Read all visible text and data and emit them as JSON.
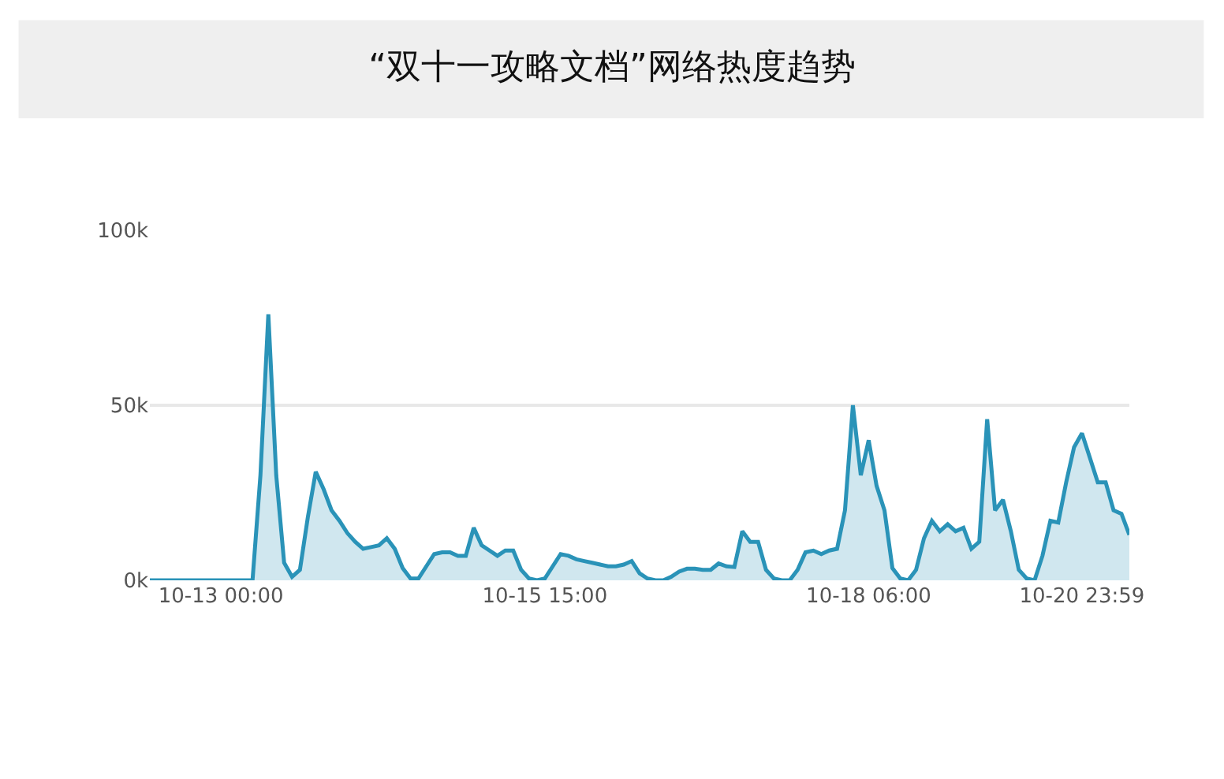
{
  "chart_data": {
    "type": "area",
    "title": "“双十一攻略文档”网络热度趋势",
    "categories": [
      null,
      null,
      null,
      null,
      null,
      null,
      null,
      null,
      null,
      "10-13 00:00",
      null,
      null,
      null,
      null,
      null,
      null,
      null,
      null,
      null,
      null,
      null,
      null,
      null,
      null,
      null,
      null,
      null,
      null,
      null,
      null,
      null,
      null,
      null,
      null,
      null,
      null,
      null,
      null,
      null,
      null,
      null,
      null,
      null,
      null,
      null,
      null,
      null,
      null,
      null,
      null,
      "10-15 15:00",
      null,
      null,
      null,
      null,
      null,
      null,
      null,
      null,
      null,
      null,
      null,
      null,
      null,
      null,
      null,
      null,
      null,
      null,
      null,
      null,
      null,
      null,
      null,
      null,
      null,
      null,
      null,
      null,
      null,
      null,
      null,
      null,
      null,
      null,
      null,
      null,
      null,
      null,
      null,
      null,
      "10-18 06:00",
      null,
      null,
      null,
      null,
      null,
      null,
      null,
      null,
      null,
      null,
      null,
      null,
      null,
      null,
      null,
      null,
      null,
      null,
      null,
      null,
      null,
      null,
      null,
      null,
      null,
      null,
      "10-20 23:59",
      null,
      null,
      null,
      null,
      null,
      null
    ],
    "series": [
      {
        "color": "#2a93b8",
        "values": [
          0,
          0,
          0,
          0,
          0,
          0,
          0,
          0,
          0,
          0,
          0,
          0,
          0,
          0,
          30000,
          76000,
          30000,
          5000,
          1000,
          3000,
          18000,
          31000,
          26000,
          20000,
          17000,
          13500,
          11000,
          9000,
          9500,
          10000,
          12000,
          9000,
          3500,
          500,
          500,
          4000,
          7500,
          8000,
          8000,
          7000,
          7000,
          15000,
          10000,
          8500,
          7000,
          8500,
          8500,
          3000,
          500,
          0,
          500,
          4000,
          7500,
          7000,
          6000,
          5500,
          5000,
          4500,
          4000,
          4000,
          4500,
          5500,
          2000,
          500,
          0,
          0,
          1000,
          2500,
          3300,
          3300,
          3000,
          3000,
          4800,
          4000,
          3800,
          14000,
          11000,
          11000,
          3000,
          500,
          0,
          0,
          3000,
          8000,
          8500,
          7500,
          8500,
          9000,
          20000,
          50000,
          30000,
          40000,
          27000,
          20000,
          3500,
          500,
          0,
          3000,
          12000,
          17000,
          14000,
          16000,
          14000,
          15000,
          9000,
          11000,
          46000,
          20000,
          23000,
          14000,
          3000,
          500,
          0,
          7000,
          17000,
          16500,
          28000,
          38000,
          42000,
          35000,
          28000,
          28000,
          20000,
          19000,
          13000
        ]
      }
    ],
    "ylim": [
      0,
      100000
    ],
    "yticks": [
      {
        "value": 0,
        "label": "0k"
      },
      {
        "value": 50000,
        "label": "50k"
      },
      {
        "value": 100000,
        "label": "100k"
      }
    ],
    "grid": "y",
    "marker": "none"
  }
}
